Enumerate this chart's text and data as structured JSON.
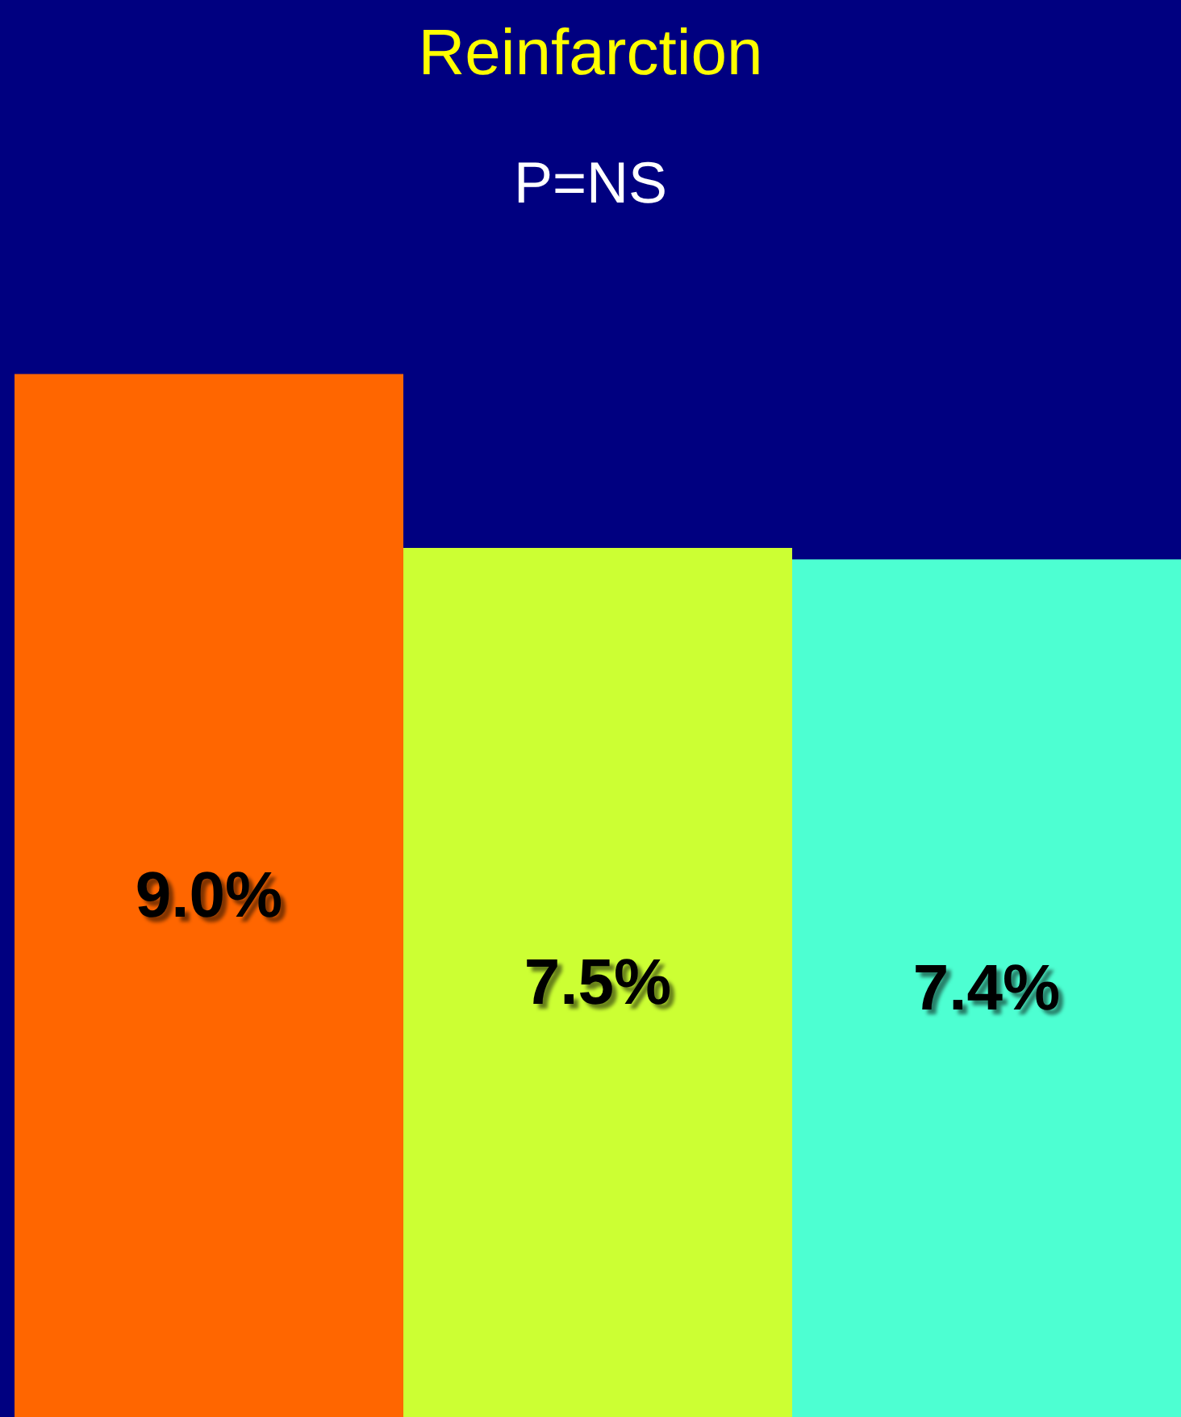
{
  "chart_data": {
    "type": "bar",
    "title": "Reinfarction",
    "annotations": [
      "P=NS"
    ],
    "categories": [
      null,
      null,
      null
    ],
    "values": [
      9.0,
      7.5,
      7.4
    ],
    "colors": [
      "#ff6600",
      "#ccff33",
      "#4dffd2"
    ],
    "value_labels": [
      "9.0%",
      "7.5%",
      "7.4%"
    ]
  }
}
